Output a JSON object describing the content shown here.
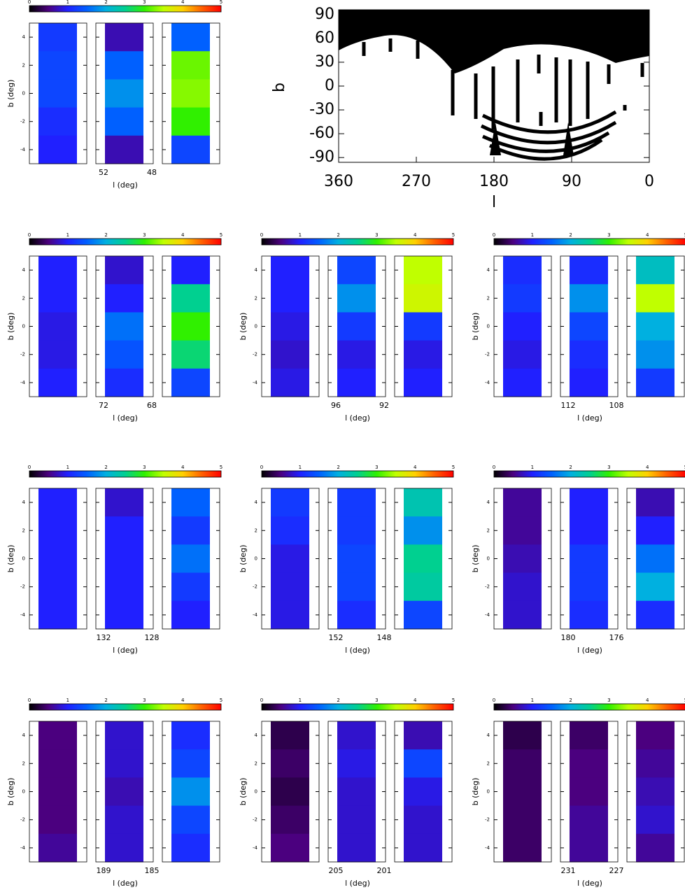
{
  "colorbar": {
    "range": [
      0,
      5
    ],
    "ticks": [
      0,
      1,
      2,
      3,
      4,
      5
    ],
    "colormap": [
      "#000000",
      "#4b007f",
      "#2020ff",
      "#0060ff",
      "#00b0e0",
      "#00d090",
      "#30f000",
      "#c0ff00",
      "#ffd000",
      "#ff6000",
      "#ff0000"
    ]
  },
  "panel_axes": {
    "ylabel": "b (deg)",
    "xlabel": "l (deg)",
    "ylim": [
      -5,
      5
    ],
    "yticks": [
      4,
      2,
      0,
      -2,
      -4
    ]
  },
  "panels": [
    {
      "xticks": [
        52,
        48
      ],
      "strips": [
        [
          1.2,
          1.3,
          1.3,
          1.1,
          1.0
        ],
        [
          0.7,
          1.5,
          1.8,
          1.5,
          0.7
        ],
        [
          1.5,
          3.2,
          3.3,
          3.0,
          1.3
        ]
      ]
    },
    {
      "xticks": [
        72,
        68
      ],
      "strips": [
        [
          1.0,
          1.0,
          0.9,
          0.9,
          1.0
        ],
        [
          0.8,
          1.0,
          1.6,
          1.4,
          1.1
        ],
        [
          1.0,
          2.5,
          3.0,
          2.6,
          1.3
        ]
      ]
    },
    {
      "xticks": [
        96,
        92
      ],
      "strips": [
        [
          1.0,
          1.0,
          0.9,
          0.8,
          0.9
        ],
        [
          1.3,
          1.8,
          1.2,
          0.9,
          1.0
        ],
        [
          3.5,
          3.6,
          1.2,
          0.9,
          1.0
        ]
      ]
    },
    {
      "xticks": [
        112,
        108
      ],
      "strips": [
        [
          1.1,
          1.2,
          1.0,
          0.9,
          1.0
        ],
        [
          1.1,
          1.8,
          1.3,
          1.1,
          1.0
        ],
        [
          2.2,
          3.5,
          2.0,
          1.8,
          1.2
        ]
      ]
    },
    {
      "xticks": [
        132,
        128
      ],
      "strips": [
        [
          1.0,
          1.0,
          1.0,
          1.0,
          1.0
        ],
        [
          0.8,
          1.0,
          1.0,
          1.0,
          1.0
        ],
        [
          1.5,
          1.2,
          1.6,
          1.2,
          1.0
        ]
      ]
    },
    {
      "xticks": [
        152,
        148
      ],
      "strips": [
        [
          1.2,
          1.1,
          0.9,
          0.9,
          0.9
        ],
        [
          1.2,
          1.2,
          1.3,
          1.3,
          1.1
        ],
        [
          2.3,
          1.8,
          2.5,
          2.4,
          1.3
        ]
      ]
    },
    {
      "xticks": [
        180,
        176
      ],
      "strips": [
        [
          0.6,
          0.6,
          0.7,
          0.8,
          0.8
        ],
        [
          1.0,
          1.0,
          1.2,
          1.2,
          1.1
        ],
        [
          0.7,
          1.0,
          1.6,
          2.0,
          1.1
        ]
      ]
    },
    {
      "xticks": [
        189,
        185
      ],
      "strips": [
        [
          0.5,
          0.5,
          0.5,
          0.5,
          0.6
        ],
        [
          0.8,
          0.8,
          0.7,
          0.8,
          0.8
        ],
        [
          1.1,
          1.3,
          1.8,
          1.3,
          1.1
        ]
      ]
    },
    {
      "xticks": [
        205,
        201
      ],
      "strips": [
        [
          0.3,
          0.4,
          0.3,
          0.4,
          0.5
        ],
        [
          0.8,
          0.9,
          0.8,
          0.8,
          0.8
        ],
        [
          0.7,
          1.3,
          0.9,
          0.8,
          0.8
        ]
      ]
    },
    {
      "xticks": [
        231,
        227
      ],
      "strips": [
        [
          0.3,
          0.4,
          0.4,
          0.4,
          0.4
        ],
        [
          0.4,
          0.5,
          0.5,
          0.6,
          0.6
        ],
        [
          0.5,
          0.6,
          0.7,
          0.8,
          0.6
        ]
      ]
    }
  ],
  "map": {
    "xlabel": "l",
    "ylabel": "b",
    "xlim": [
      360,
      0
    ],
    "xticks": [
      360,
      270,
      180,
      90,
      0
    ],
    "ylim": [
      -96,
      96
    ],
    "yticks": [
      90,
      60,
      30,
      0,
      -30,
      -60,
      -90
    ]
  }
}
